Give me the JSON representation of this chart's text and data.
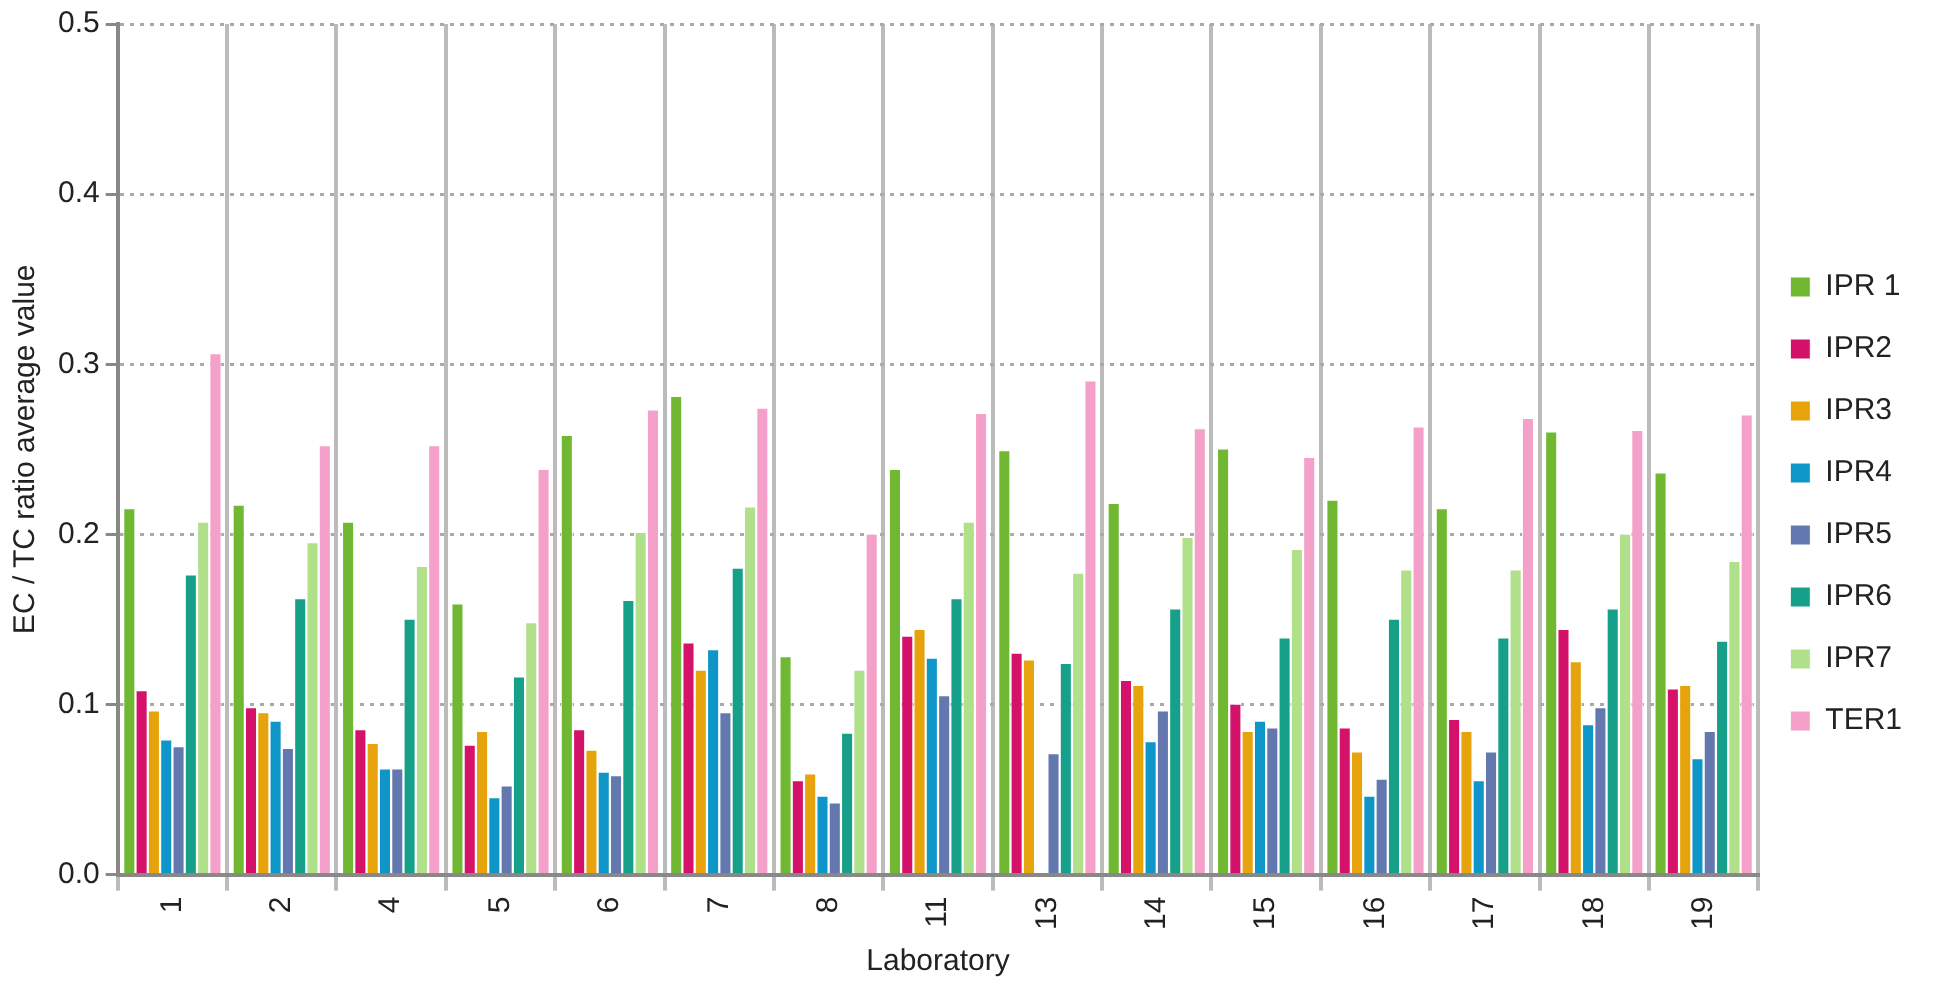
{
  "chart_data": {
    "type": "bar",
    "xlabel": "Laboratory",
    "ylabel": "EC / TC ratio average value",
    "categories": [
      "1",
      "2",
      "4",
      "5",
      "6",
      "7",
      "8",
      "11",
      "13",
      "14",
      "15",
      "16",
      "17",
      "18",
      "19"
    ],
    "series": [
      {
        "name": "IPR 1",
        "color": "#70b832",
        "values": [
          0.216,
          0.218,
          0.208,
          0.16,
          0.259,
          0.282,
          0.129,
          0.239,
          0.25,
          0.219,
          0.251,
          0.221,
          0.216,
          0.261,
          0.237
        ]
      },
      {
        "name": "IPR2",
        "color": "#d4126a",
        "values": [
          0.109,
          0.099,
          0.086,
          0.077,
          0.086,
          0.137,
          0.056,
          0.141,
          0.131,
          0.115,
          0.101,
          0.087,
          0.092,
          0.145,
          0.11
        ]
      },
      {
        "name": "IPR3",
        "color": "#e6a30c",
        "values": [
          0.097,
          0.096,
          0.078,
          0.085,
          0.074,
          0.121,
          0.06,
          0.145,
          0.127,
          0.112,
          0.085,
          0.073,
          0.085,
          0.126,
          0.112
        ]
      },
      {
        "name": "IPR4",
        "color": "#0e96c8",
        "values": [
          0.08,
          0.091,
          0.063,
          0.046,
          0.061,
          0.133,
          0.047,
          0.128,
          null,
          0.079,
          0.091,
          0.047,
          0.056,
          0.089,
          0.069
        ]
      },
      {
        "name": "IPR5",
        "color": "#6478b0",
        "values": [
          0.076,
          0.075,
          0.063,
          0.053,
          0.059,
          0.096,
          0.043,
          0.106,
          0.072,
          0.097,
          0.087,
          0.057,
          0.073,
          0.099,
          0.085
        ]
      },
      {
        "name": "IPR6",
        "color": "#16a08a",
        "values": [
          0.177,
          0.163,
          0.151,
          0.117,
          0.162,
          0.181,
          0.084,
          0.163,
          0.125,
          0.157,
          0.14,
          0.151,
          0.14,
          0.157,
          0.138
        ]
      },
      {
        "name": "IPR7",
        "color": "#b0e08a",
        "values": [
          0.208,
          0.196,
          0.182,
          0.149,
          0.202,
          0.217,
          0.121,
          0.208,
          0.178,
          0.199,
          0.192,
          0.18,
          0.18,
          0.201,
          0.185
        ]
      },
      {
        "name": "TER1",
        "color": "#f5a0c8",
        "values": [
          0.307,
          0.253,
          0.253,
          0.239,
          0.274,
          0.275,
          0.201,
          0.272,
          0.291,
          0.263,
          0.246,
          0.264,
          0.269,
          0.262,
          0.271
        ]
      }
    ],
    "ylim": [
      0,
      0.5
    ],
    "yticks": [
      {
        "value": 0,
        "label": "0.0"
      },
      {
        "value": 0.1,
        "label": "0.1"
      },
      {
        "value": 0.2,
        "label": "0.2"
      },
      {
        "value": 0.3,
        "label": "0.3"
      },
      {
        "value": 0.4,
        "label": "0.4"
      },
      {
        "value": 0.5,
        "label": "0.5"
      }
    ],
    "grid": true,
    "legend": "right"
  }
}
